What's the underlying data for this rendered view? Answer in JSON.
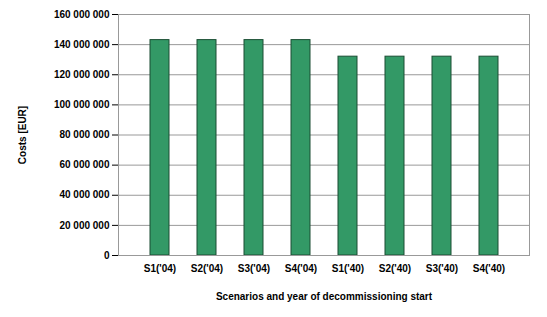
{
  "chart_data": {
    "type": "bar",
    "categories": [
      "S1('04)",
      "S2('04)",
      "S3('04)",
      "S4('04)",
      "S1('40)",
      "S2('40)",
      "S3('40)",
      "S4('40)"
    ],
    "values": [
      143000000,
      143000000,
      143000000,
      143000000,
      132000000,
      132000000,
      132000000,
      132000000
    ],
    "color": "#339966",
    "x_label": "Scenarios and year of decommissioning start",
    "y_label": "Costs [EUR]",
    "ylim": [
      0,
      160000000
    ],
    "yticks": [
      0,
      {
        "value": 20000000,
        "label": "20 000 000"
      },
      {
        "value": 40000000,
        "label": "40 000 000"
      },
      {
        "value": 60000000,
        "label": "60 000 000"
      },
      {
        "value": 80000000,
        "label": "80 000 000"
      },
      {
        "value": 100000000,
        "label": "100 000 000"
      },
      {
        "value": 120000000,
        "label": "120 000 000"
      },
      {
        "value": 140000000,
        "label": "140 000 000"
      },
      {
        "value": 160000000,
        "label": "160 000 000"
      }
    ],
    "grid": true
  }
}
